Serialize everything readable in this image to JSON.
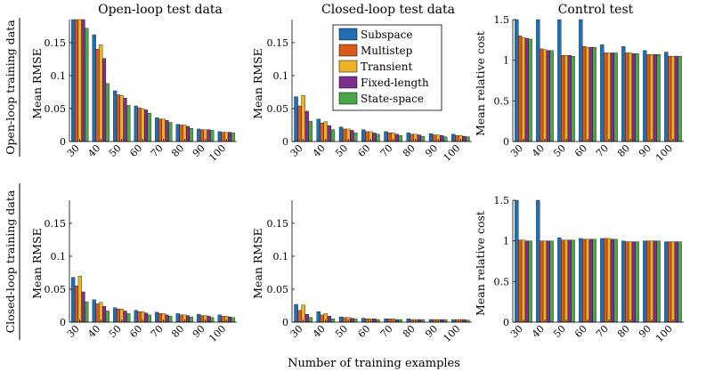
{
  "figure": {
    "xlabel": "Number of training examples",
    "row_labels": [
      "Open-loop training data",
      "Closed-loop training data"
    ],
    "col_titles": [
      "Open-loop test data",
      "Closed-loop test data",
      "Control test"
    ]
  },
  "legend": [
    "Subspace",
    "Multistep",
    "Transient",
    "Fixed-length",
    "State-space"
  ],
  "colors": [
    "#1f6fb4",
    "#d95a1a",
    "#eeb227",
    "#7e2f8e",
    "#49a846"
  ],
  "chart_data": [
    {
      "type": "bar",
      "title": "Open-loop test data",
      "ylabel": "Mean RMSE",
      "categories": [
        "30",
        "40",
        "50",
        "60",
        "70",
        "80",
        "90",
        "100"
      ],
      "ylim": [
        0,
        0.185
      ],
      "yticks": [
        0,
        0.05,
        0.1,
        0.15
      ],
      "yticklabels": [
        "0",
        "0.05",
        "0.1",
        "0.15"
      ],
      "series": [
        {
          "name": "Subspace",
          "values": [
            0.185,
            0.162,
            0.077,
            0.054,
            0.036,
            0.026,
            0.019,
            0.015
          ]
        },
        {
          "name": "Multistep",
          "values": [
            0.185,
            0.14,
            0.071,
            0.051,
            0.034,
            0.025,
            0.018,
            0.014
          ]
        },
        {
          "name": "Transient",
          "values": [
            0.185,
            0.147,
            0.07,
            0.05,
            0.034,
            0.025,
            0.018,
            0.014
          ]
        },
        {
          "name": "Fixed-length",
          "values": [
            0.185,
            0.126,
            0.066,
            0.048,
            0.032,
            0.023,
            0.018,
            0.014
          ]
        },
        {
          "name": "State-space",
          "values": [
            0.172,
            0.088,
            0.055,
            0.043,
            0.029,
            0.02,
            0.017,
            0.013
          ]
        }
      ]
    },
    {
      "type": "bar",
      "title": "Closed-loop test data",
      "ylabel": "Mean RMSE",
      "categories": [
        "30",
        "40",
        "50",
        "60",
        "70",
        "80",
        "90",
        "100"
      ],
      "ylim": [
        0,
        0.185
      ],
      "yticks": [
        0,
        0.05,
        0.1,
        0.15
      ],
      "yticklabels": [
        "0",
        "0.05",
        "0.1",
        "0.15"
      ],
      "series": [
        {
          "name": "Subspace",
          "values": [
            0.068,
            0.034,
            0.022,
            0.018,
            0.015,
            0.013,
            0.012,
            0.011
          ]
        },
        {
          "name": "Multistep",
          "values": [
            0.054,
            0.028,
            0.019,
            0.015,
            0.013,
            0.011,
            0.01,
            0.009
          ]
        },
        {
          "name": "Transient",
          "values": [
            0.07,
            0.03,
            0.019,
            0.015,
            0.013,
            0.011,
            0.01,
            0.009
          ]
        },
        {
          "name": "Fixed-length",
          "values": [
            0.046,
            0.024,
            0.017,
            0.013,
            0.011,
            0.01,
            0.009,
            0.008
          ]
        },
        {
          "name": "State-space",
          "values": [
            0.031,
            0.018,
            0.013,
            0.011,
            0.009,
            0.008,
            0.007,
            0.007
          ]
        }
      ]
    },
    {
      "type": "bar",
      "title": "Control test",
      "ylabel": "Mean relative cost",
      "categories": [
        "30",
        "40",
        "50",
        "60",
        "70",
        "80",
        "90",
        "100"
      ],
      "ylim": [
        0,
        1.5
      ],
      "yticks": [
        0,
        0.5,
        1,
        1.5
      ],
      "yticklabels": [
        "0",
        "0.5",
        "1",
        "1.5"
      ],
      "series": [
        {
          "name": "Subspace",
          "values": [
            1.5,
            1.5,
            1.5,
            1.5,
            1.19,
            1.17,
            1.12,
            1.1
          ]
        },
        {
          "name": "Multistep",
          "values": [
            1.3,
            1.14,
            1.06,
            1.17,
            1.09,
            1.09,
            1.07,
            1.05
          ]
        },
        {
          "name": "Transient",
          "values": [
            1.28,
            1.13,
            1.06,
            1.16,
            1.09,
            1.09,
            1.07,
            1.05
          ]
        },
        {
          "name": "Fixed-length",
          "values": [
            1.27,
            1.12,
            1.06,
            1.16,
            1.09,
            1.08,
            1.07,
            1.05
          ]
        },
        {
          "name": "State-space",
          "values": [
            1.26,
            1.12,
            1.05,
            1.16,
            1.09,
            1.08,
            1.07,
            1.05
          ]
        }
      ]
    },
    {
      "type": "bar",
      "title": "",
      "ylabel": "Mean RMSE",
      "categories": [
        "30",
        "40",
        "50",
        "60",
        "70",
        "80",
        "90",
        "100"
      ],
      "ylim": [
        0,
        0.185
      ],
      "yticks": [
        0,
        0.05,
        0.1,
        0.15
      ],
      "yticklabels": [
        "0",
        "0.05",
        "0.1",
        "0.15"
      ],
      "series": [
        {
          "name": "Subspace",
          "values": [
            0.068,
            0.034,
            0.022,
            0.018,
            0.015,
            0.013,
            0.012,
            0.011
          ]
        },
        {
          "name": "Multistep",
          "values": [
            0.055,
            0.028,
            0.02,
            0.016,
            0.013,
            0.011,
            0.01,
            0.009
          ]
        },
        {
          "name": "Transient",
          "values": [
            0.07,
            0.03,
            0.02,
            0.016,
            0.013,
            0.011,
            0.01,
            0.009
          ]
        },
        {
          "name": "Fixed-length",
          "values": [
            0.046,
            0.024,
            0.017,
            0.014,
            0.011,
            0.01,
            0.009,
            0.008
          ]
        },
        {
          "name": "State-space",
          "values": [
            0.031,
            0.017,
            0.013,
            0.011,
            0.009,
            0.008,
            0.007,
            0.007
          ]
        }
      ]
    },
    {
      "type": "bar",
      "title": "",
      "ylabel": "Mean RMSE",
      "categories": [
        "30",
        "40",
        "50",
        "60",
        "70",
        "80",
        "90",
        "100"
      ],
      "ylim": [
        0,
        0.185
      ],
      "yticks": [
        0,
        0.05,
        0.1,
        0.15
      ],
      "yticklabels": [
        "0",
        "0.05",
        "0.1",
        "0.15"
      ],
      "series": [
        {
          "name": "Subspace",
          "values": [
            0.027,
            0.016,
            0.008,
            0.006,
            0.005,
            0.005,
            0.004,
            0.004
          ]
        },
        {
          "name": "Multistep",
          "values": [
            0.018,
            0.011,
            0.007,
            0.005,
            0.005,
            0.004,
            0.004,
            0.004
          ]
        },
        {
          "name": "Transient",
          "values": [
            0.026,
            0.013,
            0.007,
            0.005,
            0.005,
            0.004,
            0.004,
            0.004
          ]
        },
        {
          "name": "Fixed-length",
          "values": [
            0.012,
            0.009,
            0.006,
            0.005,
            0.004,
            0.004,
            0.004,
            0.004
          ]
        },
        {
          "name": "State-space",
          "values": [
            0.007,
            0.005,
            0.005,
            0.004,
            0.004,
            0.004,
            0.004,
            0.003
          ]
        }
      ]
    },
    {
      "type": "bar",
      "title": "",
      "ylabel": "Mean relative cost",
      "categories": [
        "30",
        "40",
        "50",
        "60",
        "70",
        "80",
        "90",
        "100"
      ],
      "ylim": [
        0,
        1.5
      ],
      "yticks": [
        0,
        0.5,
        1,
        1.5
      ],
      "yticklabels": [
        "0",
        "0.5",
        "1",
        "1.5"
      ],
      "series": [
        {
          "name": "Subspace",
          "values": [
            1.5,
            1.5,
            1.04,
            1.03,
            1.03,
            1.0,
            1.0,
            0.99
          ]
        },
        {
          "name": "Multistep",
          "values": [
            1.01,
            1.0,
            1.01,
            1.02,
            1.03,
            0.99,
            1.0,
            0.99
          ]
        },
        {
          "name": "Transient",
          "values": [
            1.01,
            1.0,
            1.01,
            1.02,
            1.03,
            0.99,
            1.0,
            0.99
          ]
        },
        {
          "name": "Fixed-length",
          "values": [
            1.0,
            1.0,
            1.01,
            1.02,
            1.02,
            0.99,
            1.0,
            0.99
          ]
        },
        {
          "name": "State-space",
          "values": [
            1.0,
            1.0,
            1.01,
            1.02,
            1.02,
            0.99,
            1.0,
            0.99
          ]
        }
      ]
    }
  ]
}
